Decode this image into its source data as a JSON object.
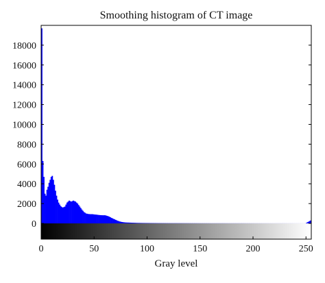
{
  "chart_data": {
    "type": "bar",
    "title": "Smoothing histogram of CT image",
    "xlabel": "Gray level",
    "ylabel": "",
    "xlim": [
      0,
      255
    ],
    "ylim": [
      0,
      20000
    ],
    "xticks": [
      0,
      50,
      100,
      150,
      200,
      250
    ],
    "yticks": [
      0,
      2000,
      4000,
      6000,
      8000,
      10000,
      12000,
      14000,
      16000,
      18000
    ],
    "grid": false,
    "bar_color": "#0000ff",
    "colorbar": "grayscale",
    "series": [
      {
        "x": [
          0,
          1,
          2,
          3,
          4,
          5,
          6,
          7,
          8,
          9,
          10,
          11,
          12,
          13,
          14,
          15,
          16,
          17,
          18,
          19,
          20,
          22,
          24,
          26,
          28,
          30,
          32,
          34,
          36,
          38,
          40,
          42,
          44,
          46,
          48,
          50,
          52,
          54,
          56,
          58,
          60,
          62,
          64,
          66,
          68,
          70,
          72,
          74,
          76,
          78,
          80,
          85,
          90,
          95,
          100,
          110,
          120,
          130,
          140,
          150,
          160,
          170,
          180,
          190,
          200,
          210,
          220,
          230,
          240,
          250,
          255
        ],
        "values": [
          19700,
          6300,
          4700,
          3000,
          2800,
          3400,
          3700,
          4100,
          4400,
          4700,
          4800,
          4400,
          3900,
          3300,
          2800,
          2400,
          2100,
          1900,
          1750,
          1650,
          1600,
          1700,
          2100,
          2300,
          2200,
          2300,
          2200,
          2000,
          1700,
          1400,
          1150,
          1000,
          950,
          930,
          930,
          900,
          880,
          850,
          830,
          820,
          820,
          760,
          680,
          560,
          460,
          360,
          260,
          190,
          140,
          110,
          90,
          70,
          50,
          40,
          35,
          25,
          20,
          18,
          15,
          12,
          10,
          10,
          8,
          8,
          6,
          5,
          4,
          4,
          3,
          3,
          300
        ]
      }
    ]
  }
}
